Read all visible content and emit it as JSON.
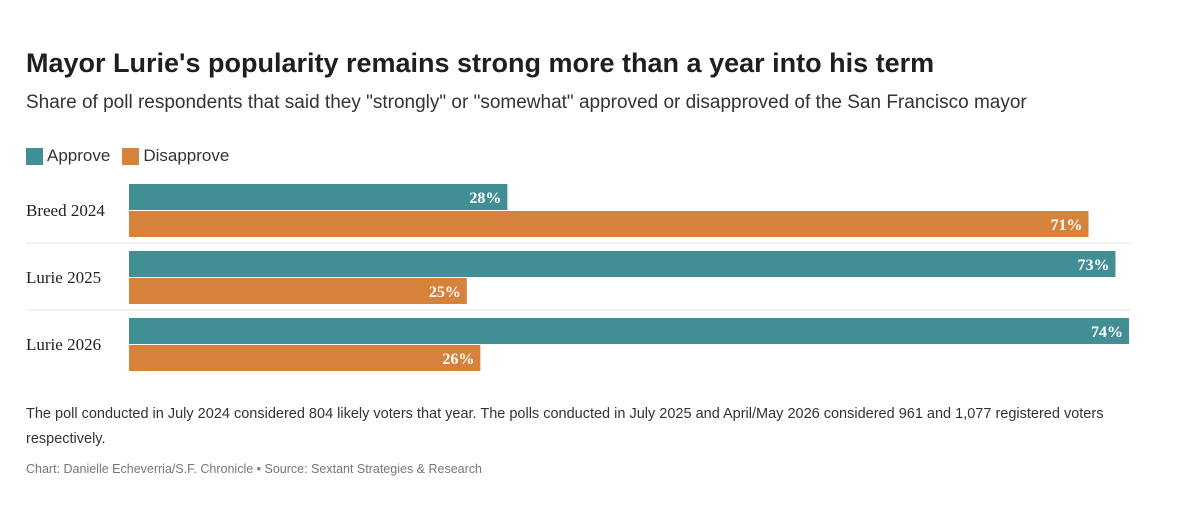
{
  "chart_data": {
    "type": "bar",
    "orientation": "horizontal",
    "title": "Mayor Lurie's popularity remains strong more than a year into his term",
    "subtitle": "Share of poll respondents that said they \"strongly\" or \"somewhat\" approved or disapproved of the San Francisco mayor",
    "categories": [
      "Breed 2024",
      "Lurie 2025",
      "Lurie 2026"
    ],
    "series": [
      {
        "name": "Approve",
        "values": [
          28,
          73,
          74
        ],
        "labels": [
          "28%",
          "73%",
          "74%"
        ],
        "color": "#418f94"
      },
      {
        "name": "Disapprove",
        "values": [
          71,
          25,
          26
        ],
        "labels": [
          "71%",
          "25%",
          "26%"
        ],
        "color": "#d7823a"
      }
    ],
    "xlim": [
      0,
      74
    ],
    "grid": false,
    "legend_position": "top-left"
  },
  "note": "The poll conducted in July 2024 considered 804 likely voters that year. The polls conducted in July 2025 and April/May 2026 considered 961 and 1,077 registered voters respectively.",
  "credit": "Chart: Danielle Echeverria/S.F. Chronicle • Source: Sextant Strategies & Research"
}
